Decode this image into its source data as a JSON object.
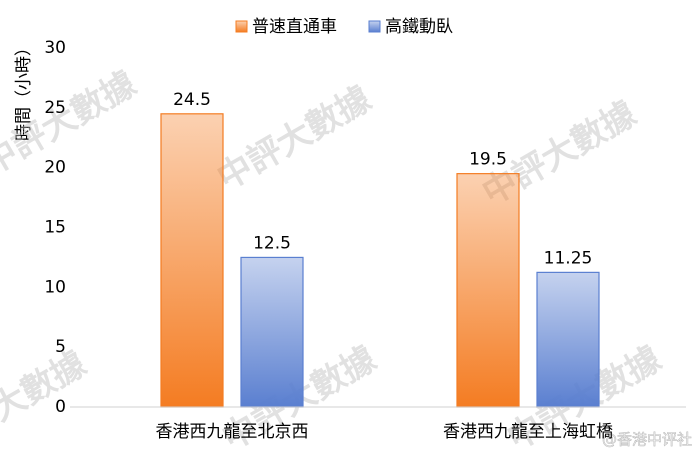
{
  "chart_data": {
    "type": "bar",
    "y_label": "時間（小時）",
    "categories": [
      "香港西九龍至北京西",
      "香港西九龍至上海虹橋"
    ],
    "series": [
      {
        "name": "普速直通車",
        "color": "#f47c22",
        "values": [
          24.5,
          19.5
        ]
      },
      {
        "name": "高鐵動臥",
        "color": "#5a7fd0",
        "values": [
          12.5,
          11.25
        ]
      }
    ],
    "ylim": [
      0,
      30
    ],
    "yticks": [
      0,
      5,
      10,
      15,
      20,
      25,
      30
    ],
    "grid": false,
    "legend": "top",
    "watermark": "中評大數據",
    "credit": "@香港中评社"
  }
}
